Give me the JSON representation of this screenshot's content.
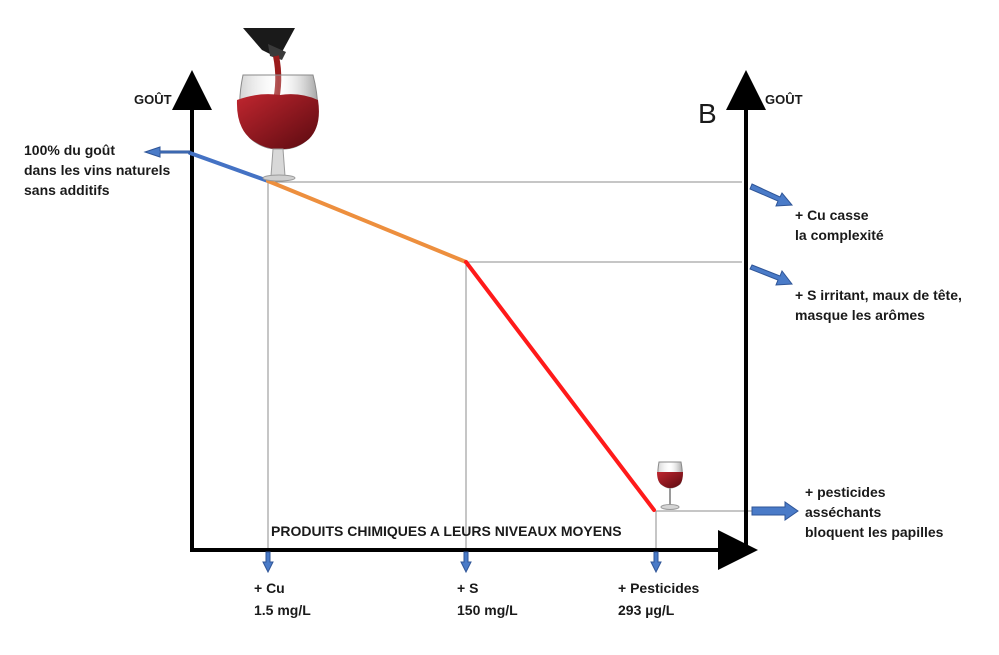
{
  "marker_letter": "B",
  "axis_left_title": "GOÛT",
  "axis_right_title": "GOÛT",
  "x_axis_title": "PRODUITS CHIMIQUES A LEURS NIVEAUX MOYENS",
  "start_note": "100% du goût\ndans les vins naturels\nsans additifs",
  "effects": [
    {
      "text": "+ Cu casse\nla complexité"
    },
    {
      "text": "+ S irritant, maux de tête,\nmasque les arômes"
    },
    {
      "text": "+ pesticides\nasséchants\nbloquent les papilles"
    }
  ],
  "stages": [
    {
      "name": "+ Cu",
      "level": "1.5 mg/L"
    },
    {
      "name": "+ S",
      "level": "150 mg/L"
    },
    {
      "name": "+ Pesticides",
      "level": "293 µg/L"
    }
  ],
  "colors": {
    "segment_natural": "#4472c4",
    "segment_copper": "#ed8f3e",
    "segment_sulfur": "#ff1a1a",
    "arrow_blue": "#4a7bc8",
    "axis": "#000000",
    "guide": "#8c8c8c",
    "wine_red": "#8b1a1a"
  },
  "icons": [
    "wine-bottle-pour-icon",
    "wine-glass-icon",
    "small-wine-glass-icon"
  ]
}
